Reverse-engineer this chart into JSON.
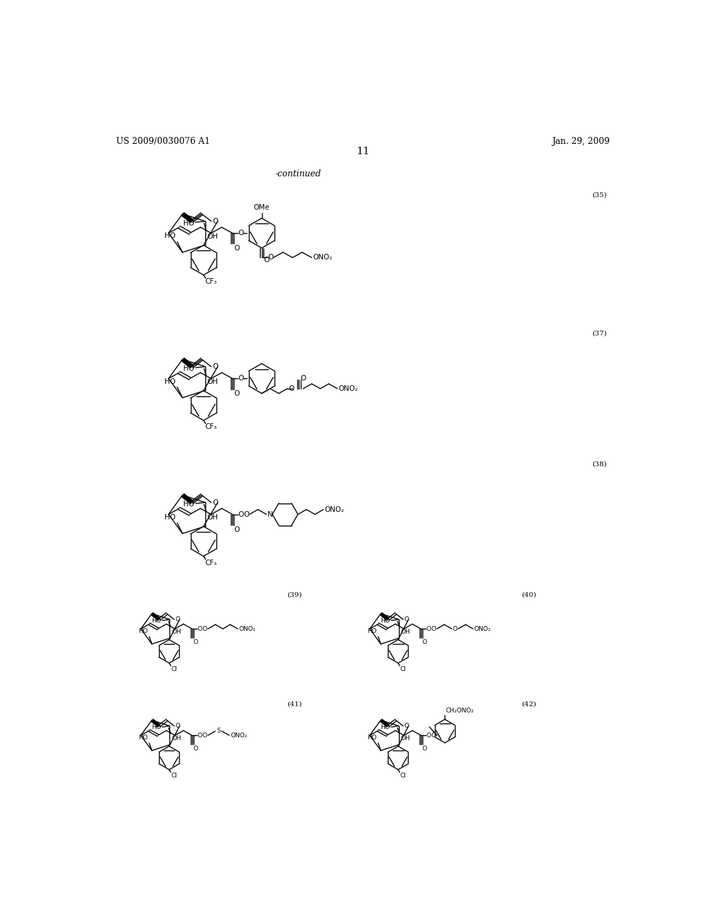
{
  "bg_color": "#ffffff",
  "page_number": "11",
  "header_left": "US 2009/0030076 A1",
  "header_right": "Jan. 29, 2009",
  "continued_text": "-continued",
  "figsize": [
    10.24,
    13.2
  ],
  "dpi": 100
}
